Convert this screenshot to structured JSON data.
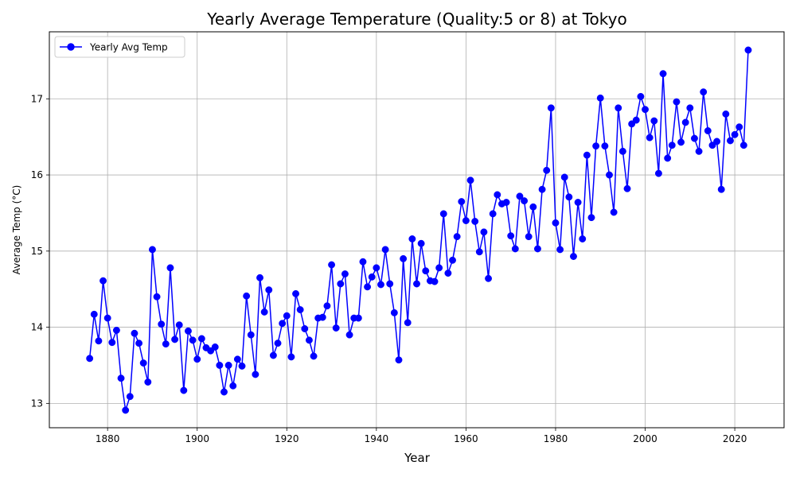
{
  "chart_data": {
    "type": "line",
    "title": "Yearly Average Temperature (Quality:5 or 8) at Tokyo",
    "xlabel": "Year",
    "ylabel": "Average Temp (°C)",
    "xlim": [
      1867,
      2031
    ],
    "ylim": [
      12.68,
      17.88
    ],
    "x_ticks": [
      1880,
      1900,
      1920,
      1940,
      1960,
      1980,
      2000,
      2020
    ],
    "y_ticks": [
      13,
      14,
      15,
      16,
      17
    ],
    "grid": true,
    "legend_position": "top-left",
    "series": [
      {
        "name": "Yearly Avg Temp",
        "color": "#0000ff",
        "marker": "circle",
        "points": [
          [
            1876,
            13.59
          ],
          [
            1877,
            14.17
          ],
          [
            1878,
            13.82
          ],
          [
            1879,
            14.61
          ],
          [
            1880,
            14.12
          ],
          [
            1881,
            13.8
          ],
          [
            1882,
            13.96
          ],
          [
            1883,
            13.33
          ],
          [
            1884,
            12.91
          ],
          [
            1885,
            13.09
          ],
          [
            1886,
            13.92
          ],
          [
            1887,
            13.79
          ],
          [
            1888,
            13.53
          ],
          [
            1889,
            13.28
          ],
          [
            1890,
            15.02
          ],
          [
            1891,
            14.4
          ],
          [
            1892,
            14.04
          ],
          [
            1893,
            13.78
          ],
          [
            1894,
            14.78
          ],
          [
            1895,
            13.84
          ],
          [
            1896,
            14.03
          ],
          [
            1897,
            13.17
          ],
          [
            1898,
            13.95
          ],
          [
            1899,
            13.83
          ],
          [
            1900,
            13.58
          ],
          [
            1901,
            13.85
          ],
          [
            1902,
            13.73
          ],
          [
            1903,
            13.69
          ],
          [
            1904,
            13.74
          ],
          [
            1905,
            13.5
          ],
          [
            1906,
            13.15
          ],
          [
            1907,
            13.5
          ],
          [
            1908,
            13.23
          ],
          [
            1909,
            13.58
          ],
          [
            1910,
            13.49
          ],
          [
            1911,
            14.41
          ],
          [
            1912,
            13.9
          ],
          [
            1913,
            13.38
          ],
          [
            1914,
            14.65
          ],
          [
            1915,
            14.2
          ],
          [
            1916,
            14.49
          ],
          [
            1917,
            13.63
          ],
          [
            1918,
            13.79
          ],
          [
            1919,
            14.05
          ],
          [
            1920,
            14.15
          ],
          [
            1921,
            13.61
          ],
          [
            1922,
            14.44
          ],
          [
            1923,
            14.23
          ],
          [
            1924,
            13.98
          ],
          [
            1925,
            13.83
          ],
          [
            1926,
            13.62
          ],
          [
            1927,
            14.12
          ],
          [
            1928,
            14.13
          ],
          [
            1929,
            14.28
          ],
          [
            1930,
            14.82
          ],
          [
            1931,
            13.99
          ],
          [
            1932,
            14.57
          ],
          [
            1933,
            14.7
          ],
          [
            1934,
            13.9
          ],
          [
            1935,
            14.12
          ],
          [
            1936,
            14.12
          ],
          [
            1937,
            14.86
          ],
          [
            1938,
            14.53
          ],
          [
            1939,
            14.66
          ],
          [
            1940,
            14.78
          ],
          [
            1941,
            14.56
          ],
          [
            1942,
            15.02
          ],
          [
            1943,
            14.57
          ],
          [
            1944,
            14.19
          ],
          [
            1945,
            13.57
          ],
          [
            1946,
            14.9
          ],
          [
            1947,
            14.06
          ],
          [
            1948,
            15.16
          ],
          [
            1949,
            14.57
          ],
          [
            1950,
            15.1
          ],
          [
            1951,
            14.74
          ],
          [
            1952,
            14.61
          ],
          [
            1953,
            14.6
          ],
          [
            1954,
            14.78
          ],
          [
            1955,
            15.49
          ],
          [
            1956,
            14.71
          ],
          [
            1957,
            14.88
          ],
          [
            1958,
            15.19
          ],
          [
            1959,
            15.65
          ],
          [
            1960,
            15.4
          ],
          [
            1961,
            15.93
          ],
          [
            1962,
            15.39
          ],
          [
            1963,
            14.99
          ],
          [
            1964,
            15.25
          ],
          [
            1965,
            14.64
          ],
          [
            1966,
            15.49
          ],
          [
            1967,
            15.74
          ],
          [
            1968,
            15.62
          ],
          [
            1969,
            15.64
          ],
          [
            1970,
            15.2
          ],
          [
            1971,
            15.03
          ],
          [
            1972,
            15.72
          ],
          [
            1973,
            15.66
          ],
          [
            1974,
            15.19
          ],
          [
            1975,
            15.58
          ],
          [
            1976,
            15.03
          ],
          [
            1977,
            15.81
          ],
          [
            1978,
            16.06
          ],
          [
            1979,
            16.88
          ],
          [
            1980,
            15.37
          ],
          [
            1981,
            15.02
          ],
          [
            1982,
            15.97
          ],
          [
            1983,
            15.71
          ],
          [
            1984,
            14.93
          ],
          [
            1985,
            15.64
          ],
          [
            1986,
            15.16
          ],
          [
            1987,
            16.26
          ],
          [
            1988,
            15.44
          ],
          [
            1989,
            16.38
          ],
          [
            1990,
            17.01
          ],
          [
            1991,
            16.38
          ],
          [
            1992,
            16.0
          ],
          [
            1993,
            15.51
          ],
          [
            1994,
            16.88
          ],
          [
            1995,
            16.31
          ],
          [
            1996,
            15.82
          ],
          [
            1997,
            16.67
          ],
          [
            1998,
            16.72
          ],
          [
            1999,
            17.03
          ],
          [
            2000,
            16.86
          ],
          [
            2001,
            16.49
          ],
          [
            2002,
            16.71
          ],
          [
            2003,
            16.02
          ],
          [
            2004,
            17.33
          ],
          [
            2005,
            16.22
          ],
          [
            2006,
            16.39
          ],
          [
            2007,
            16.96
          ],
          [
            2008,
            16.43
          ],
          [
            2009,
            16.69
          ],
          [
            2010,
            16.88
          ],
          [
            2011,
            16.48
          ],
          [
            2012,
            16.31
          ],
          [
            2013,
            17.09
          ],
          [
            2014,
            16.58
          ],
          [
            2015,
            16.39
          ],
          [
            2016,
            16.44
          ],
          [
            2017,
            15.81
          ],
          [
            2018,
            16.8
          ],
          [
            2019,
            16.45
          ],
          [
            2020,
            16.53
          ],
          [
            2021,
            16.63
          ],
          [
            2022,
            16.39
          ],
          [
            2023,
            17.64
          ]
        ]
      }
    ]
  }
}
